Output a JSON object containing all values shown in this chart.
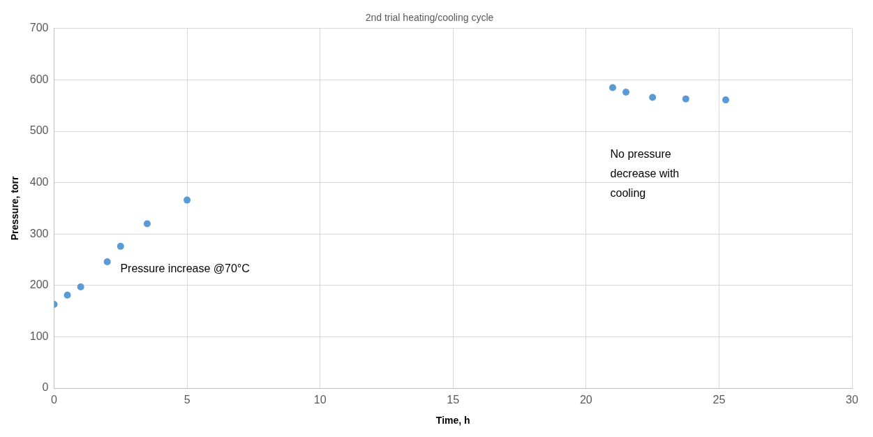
{
  "chart_data": {
    "type": "scatter",
    "title": "2nd trial heating/cooling cycle",
    "xlabel": "Time, h",
    "ylabel": "Pressure, torr",
    "x": [
      0,
      0.5,
      1,
      2,
      2.5,
      3.5,
      5,
      21,
      21.5,
      22.5,
      23.75,
      25.25
    ],
    "series": [
      {
        "color": "#5b9bd5",
        "values": [
          163,
          181,
          197,
          246,
          276,
          320,
          366,
          585,
          576,
          566,
          563,
          561
        ]
      }
    ],
    "xlim": [
      0,
      30
    ],
    "xticks": [
      0,
      5,
      10,
      15,
      20,
      25,
      30
    ],
    "ylim": [
      0,
      700
    ],
    "yticks": [
      0,
      100,
      200,
      300,
      400,
      500,
      600,
      700
    ],
    "grid": true,
    "legend": false,
    "marker": "circle",
    "annotations": [
      "Pressure increase @70°C",
      "No pressure decrease with cooling"
    ]
  }
}
